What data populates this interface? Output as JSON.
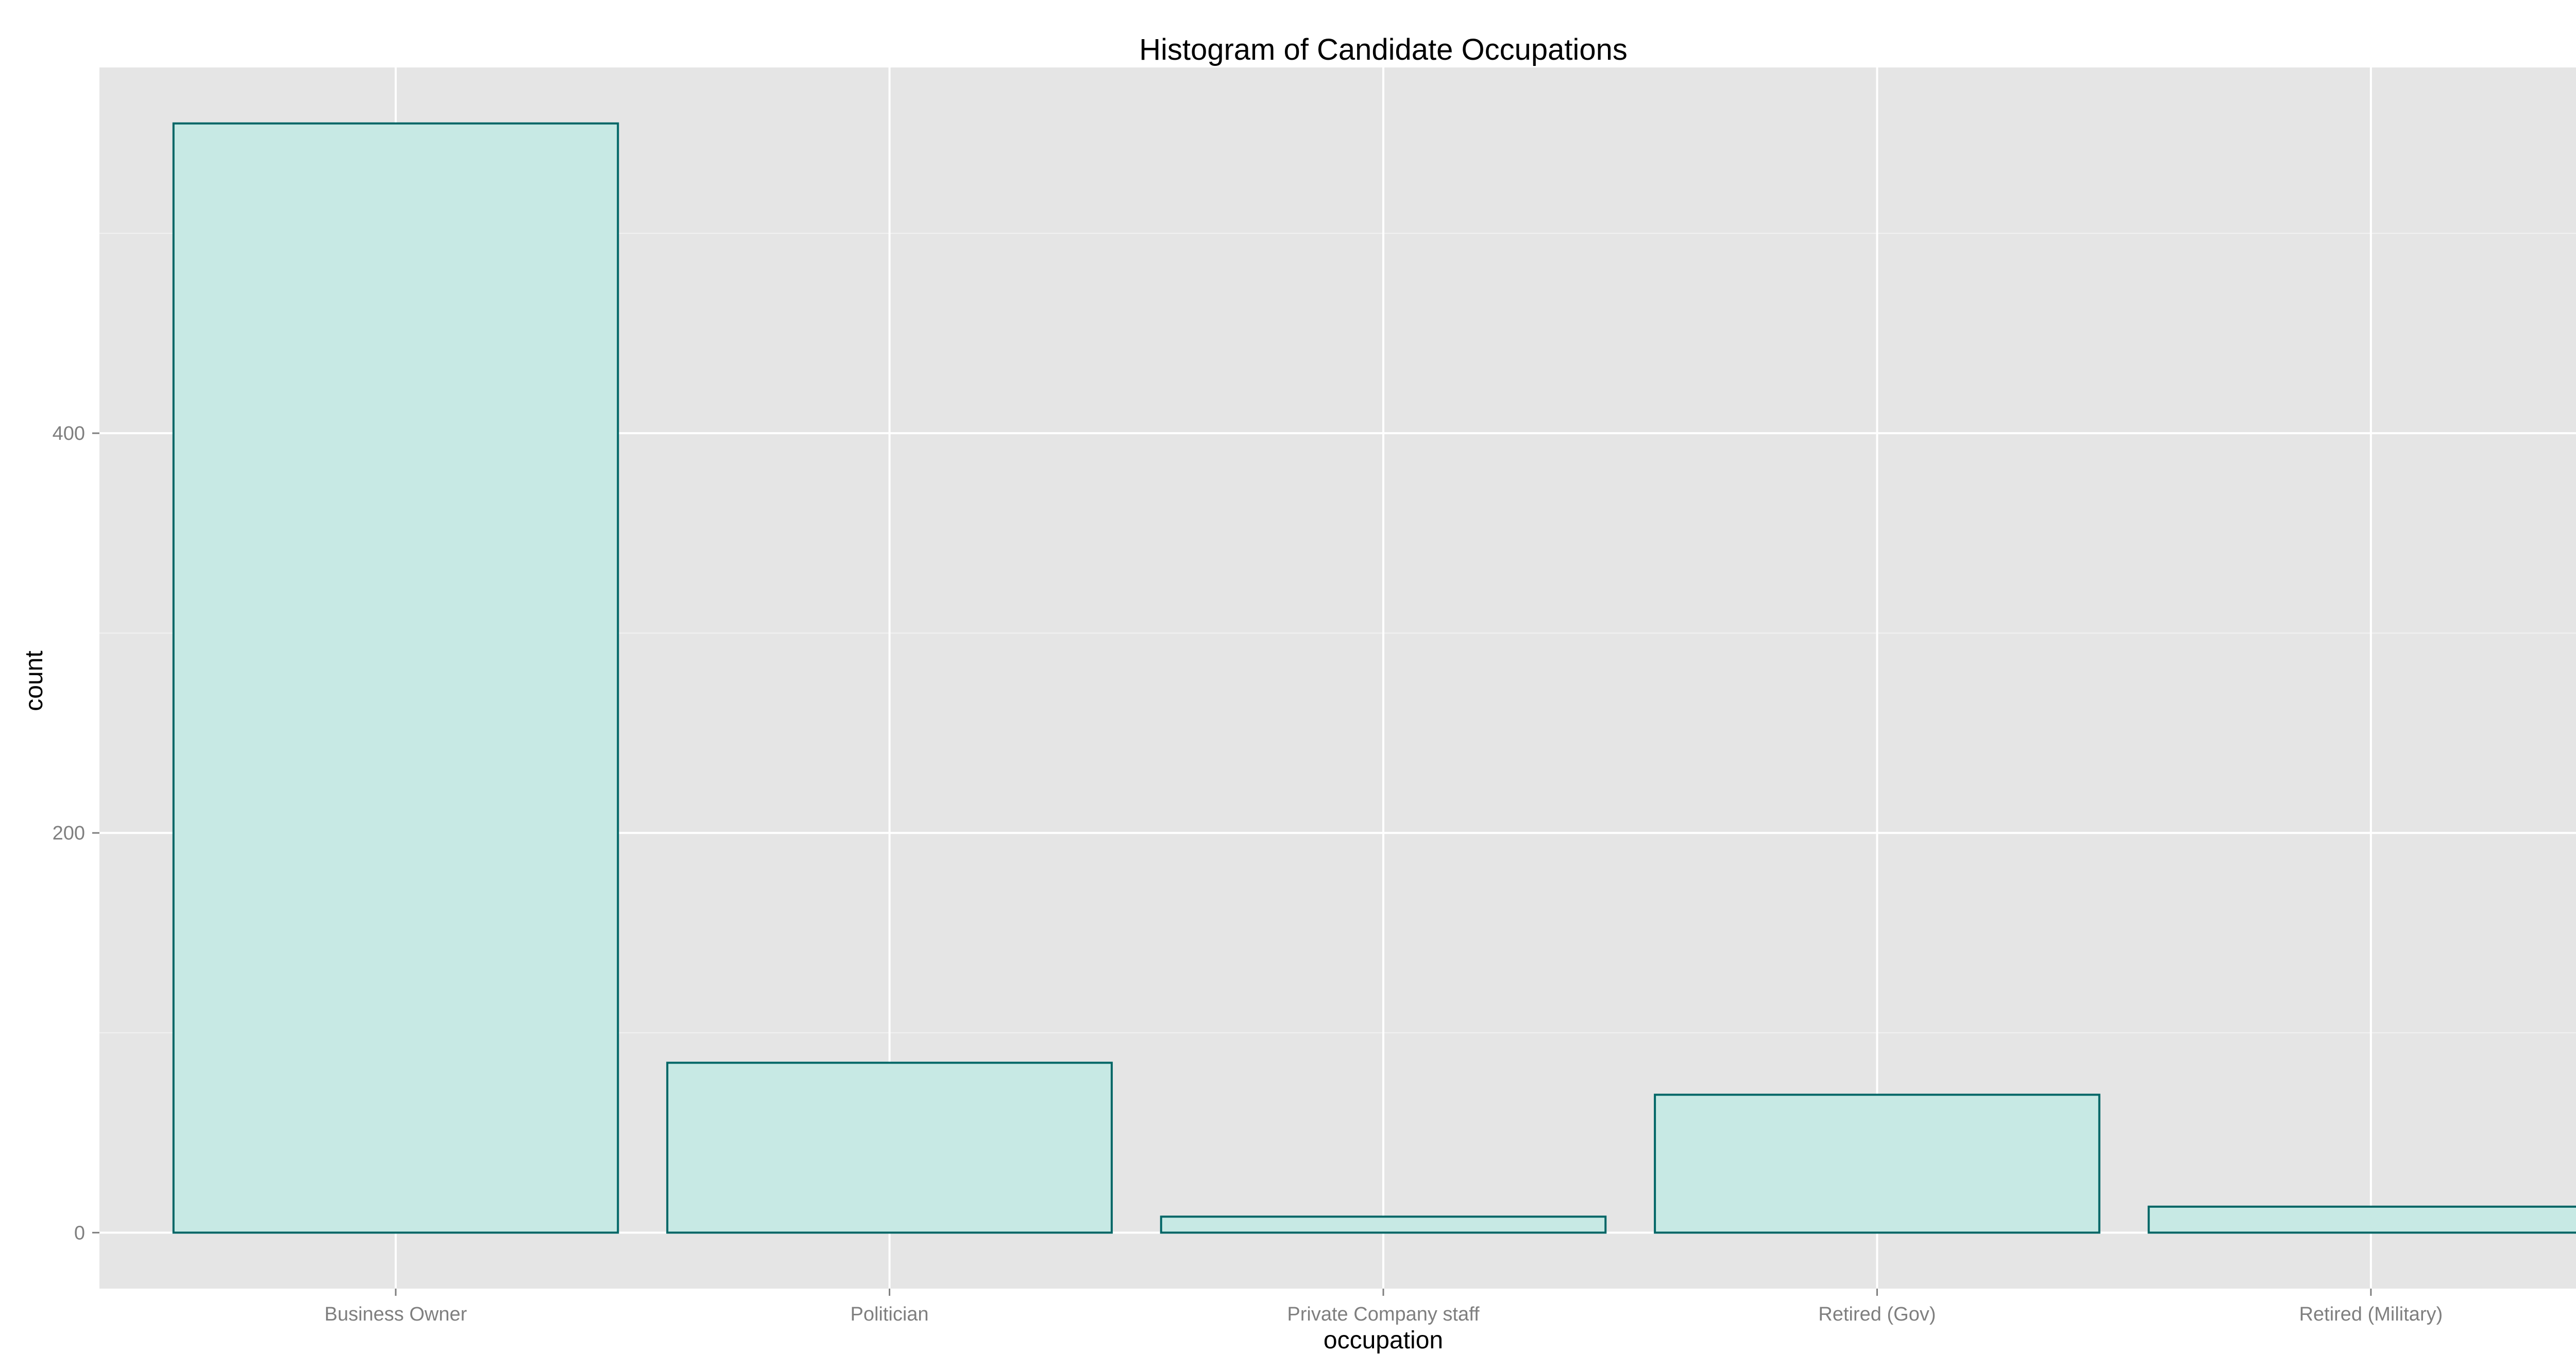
{
  "chart_data": {
    "type": "bar",
    "title": "Histogram of Candidate Occupations",
    "xlabel": "occupation",
    "ylabel": "count",
    "categories": [
      "Business Owner",
      "Politician",
      "Private Company staff",
      "Retired (Gov)",
      "Retired (Military)"
    ],
    "values": [
      555,
      85,
      8,
      69,
      13
    ],
    "ylim": [
      -28,
      583
    ],
    "yticks": [
      0,
      200,
      400
    ],
    "ytick_labels": [
      "0",
      "200",
      "400"
    ],
    "grid": true,
    "legend": "none",
    "colors": {
      "panel_background": "#e5e5e5",
      "grid_major": "#ffffff",
      "grid_minor": "#f2f2f2",
      "bar_fill": "#c7e9e4",
      "bar_outline": "#006666",
      "tick_text": "#7f7f7f"
    }
  }
}
